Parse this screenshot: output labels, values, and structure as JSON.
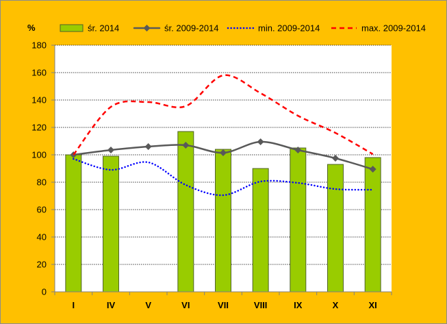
{
  "chart_data": {
    "type": "bar",
    "unit_label": "%",
    "categories": [
      "I",
      "IV",
      "V",
      "VI",
      "VII",
      "VIII",
      "IX",
      "X",
      "XI"
    ],
    "ylim": [
      0,
      180
    ],
    "yticks": [
      0,
      20,
      40,
      60,
      80,
      100,
      120,
      140,
      160,
      180
    ],
    "grid": true,
    "legend_position": "top",
    "series": [
      {
        "name": "śr. 2014",
        "kind": "bar",
        "color": "#99cc00",
        "values": [
          100,
          99,
          null,
          117,
          104,
          90,
          105,
          93,
          98
        ]
      },
      {
        "name": "śr. 2009-2014",
        "kind": "line",
        "style": "solid-diamond",
        "color": "#595959",
        "values": [
          100,
          103.5,
          106,
          107,
          101.5,
          109.5,
          103.5,
          97.5,
          89.5
        ]
      },
      {
        "name": "min. 2009-2014",
        "kind": "line",
        "style": "dotted",
        "color": "#0000ff",
        "values": [
          97,
          89,
          94.5,
          78,
          70.5,
          80.5,
          79.5,
          75,
          74.5
        ]
      },
      {
        "name": "max. 2009-2014",
        "kind": "line",
        "style": "dashed",
        "color": "#ff0000",
        "values": [
          100,
          135,
          138.5,
          135.5,
          158,
          145,
          128.5,
          116,
          100.5
        ]
      }
    ]
  }
}
